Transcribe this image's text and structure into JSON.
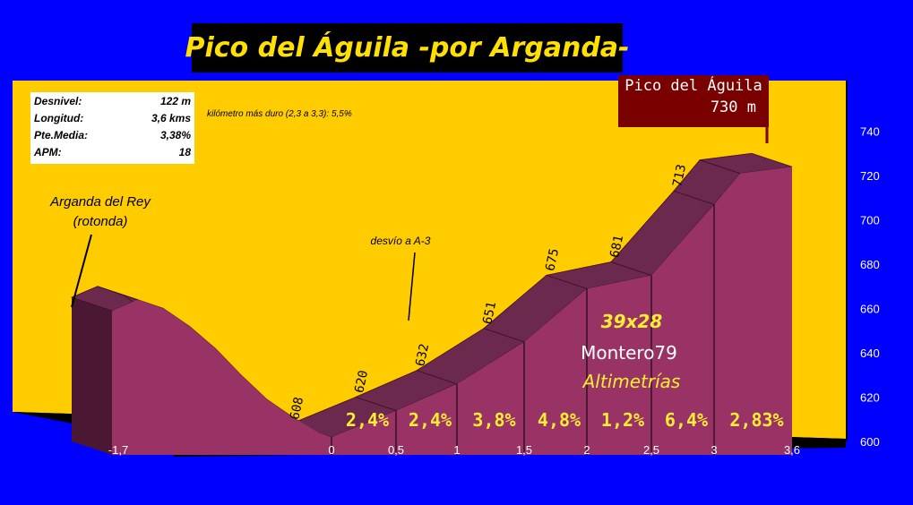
{
  "title": "Pico del Águila -por Arganda-",
  "stats": [
    {
      "label": "Desnivel:",
      "value": "122 m"
    },
    {
      "label": "Longitud:",
      "value": "3,6 kms"
    },
    {
      "label": "Pte.Media:",
      "value": "3,38%"
    },
    {
      "label": "APM:",
      "value": "18"
    }
  ],
  "hardest_km": "kilómetro más duro (2,3 a 3,3):  5,5%",
  "peak": {
    "name": "Pico del Águila",
    "altitude": "730 m"
  },
  "start_label": [
    "Arganda del Rey",
    "(rotonda)"
  ],
  "junction_label": "desvío a A-3",
  "credits": {
    "scale": "39x28",
    "author": "Montero79",
    "series": "Altimetrías"
  },
  "colors": {
    "background": "#0000FF",
    "back_wall": "#FFCC00",
    "profile_front": "#993366",
    "profile_top": "#6B2A4D",
    "title_text": "#FFE000",
    "peak_box": "#7A0000"
  },
  "chart_data": {
    "type": "area",
    "x": [
      -1.7,
      -1.5,
      -1.3,
      -1.1,
      -0.9,
      -0.7,
      -0.5,
      -0.3,
      -0.1,
      0,
      0.5,
      1,
      1.5,
      2,
      2.5,
      3,
      3.2,
      3.6
    ],
    "y": [
      665,
      670,
      666,
      658,
      648,
      636,
      625,
      617,
      610,
      608,
      620,
      632,
      651,
      675,
      681,
      713,
      727,
      730
    ],
    "xticks": [
      -1.7,
      0,
      0.5,
      1,
      1.5,
      2,
      2.5,
      3,
      3.6
    ],
    "xtick_labels": [
      "-1,7",
      "0",
      "0,5",
      "1",
      "1,5",
      "2",
      "2,5",
      "3",
      "3,6"
    ],
    "yticks": [
      600,
      620,
      640,
      660,
      680,
      700,
      720,
      740
    ],
    "ylim": [
      600,
      740
    ],
    "point_labels": [
      {
        "x": 0,
        "text": "608"
      },
      {
        "x": 0.5,
        "text": "620"
      },
      {
        "x": 1,
        "text": "632"
      },
      {
        "x": 1.5,
        "text": "651"
      },
      {
        "x": 2,
        "text": "675"
      },
      {
        "x": 2.5,
        "text": "681"
      },
      {
        "x": 3,
        "text": "713"
      }
    ],
    "segment_gradients": [
      {
        "from": 0,
        "to": 0.5,
        "text": "2,4%"
      },
      {
        "from": 0.5,
        "to": 1,
        "text": "2,4%"
      },
      {
        "from": 1,
        "to": 1.5,
        "text": "3,8%"
      },
      {
        "from": 1.5,
        "to": 2,
        "text": "4,8%"
      },
      {
        "from": 2,
        "to": 2.5,
        "text": "1,2%"
      },
      {
        "from": 2.5,
        "to": 3,
        "text": "6,4%"
      },
      {
        "from": 3,
        "to": 3.6,
        "text": "2,83%"
      }
    ]
  }
}
